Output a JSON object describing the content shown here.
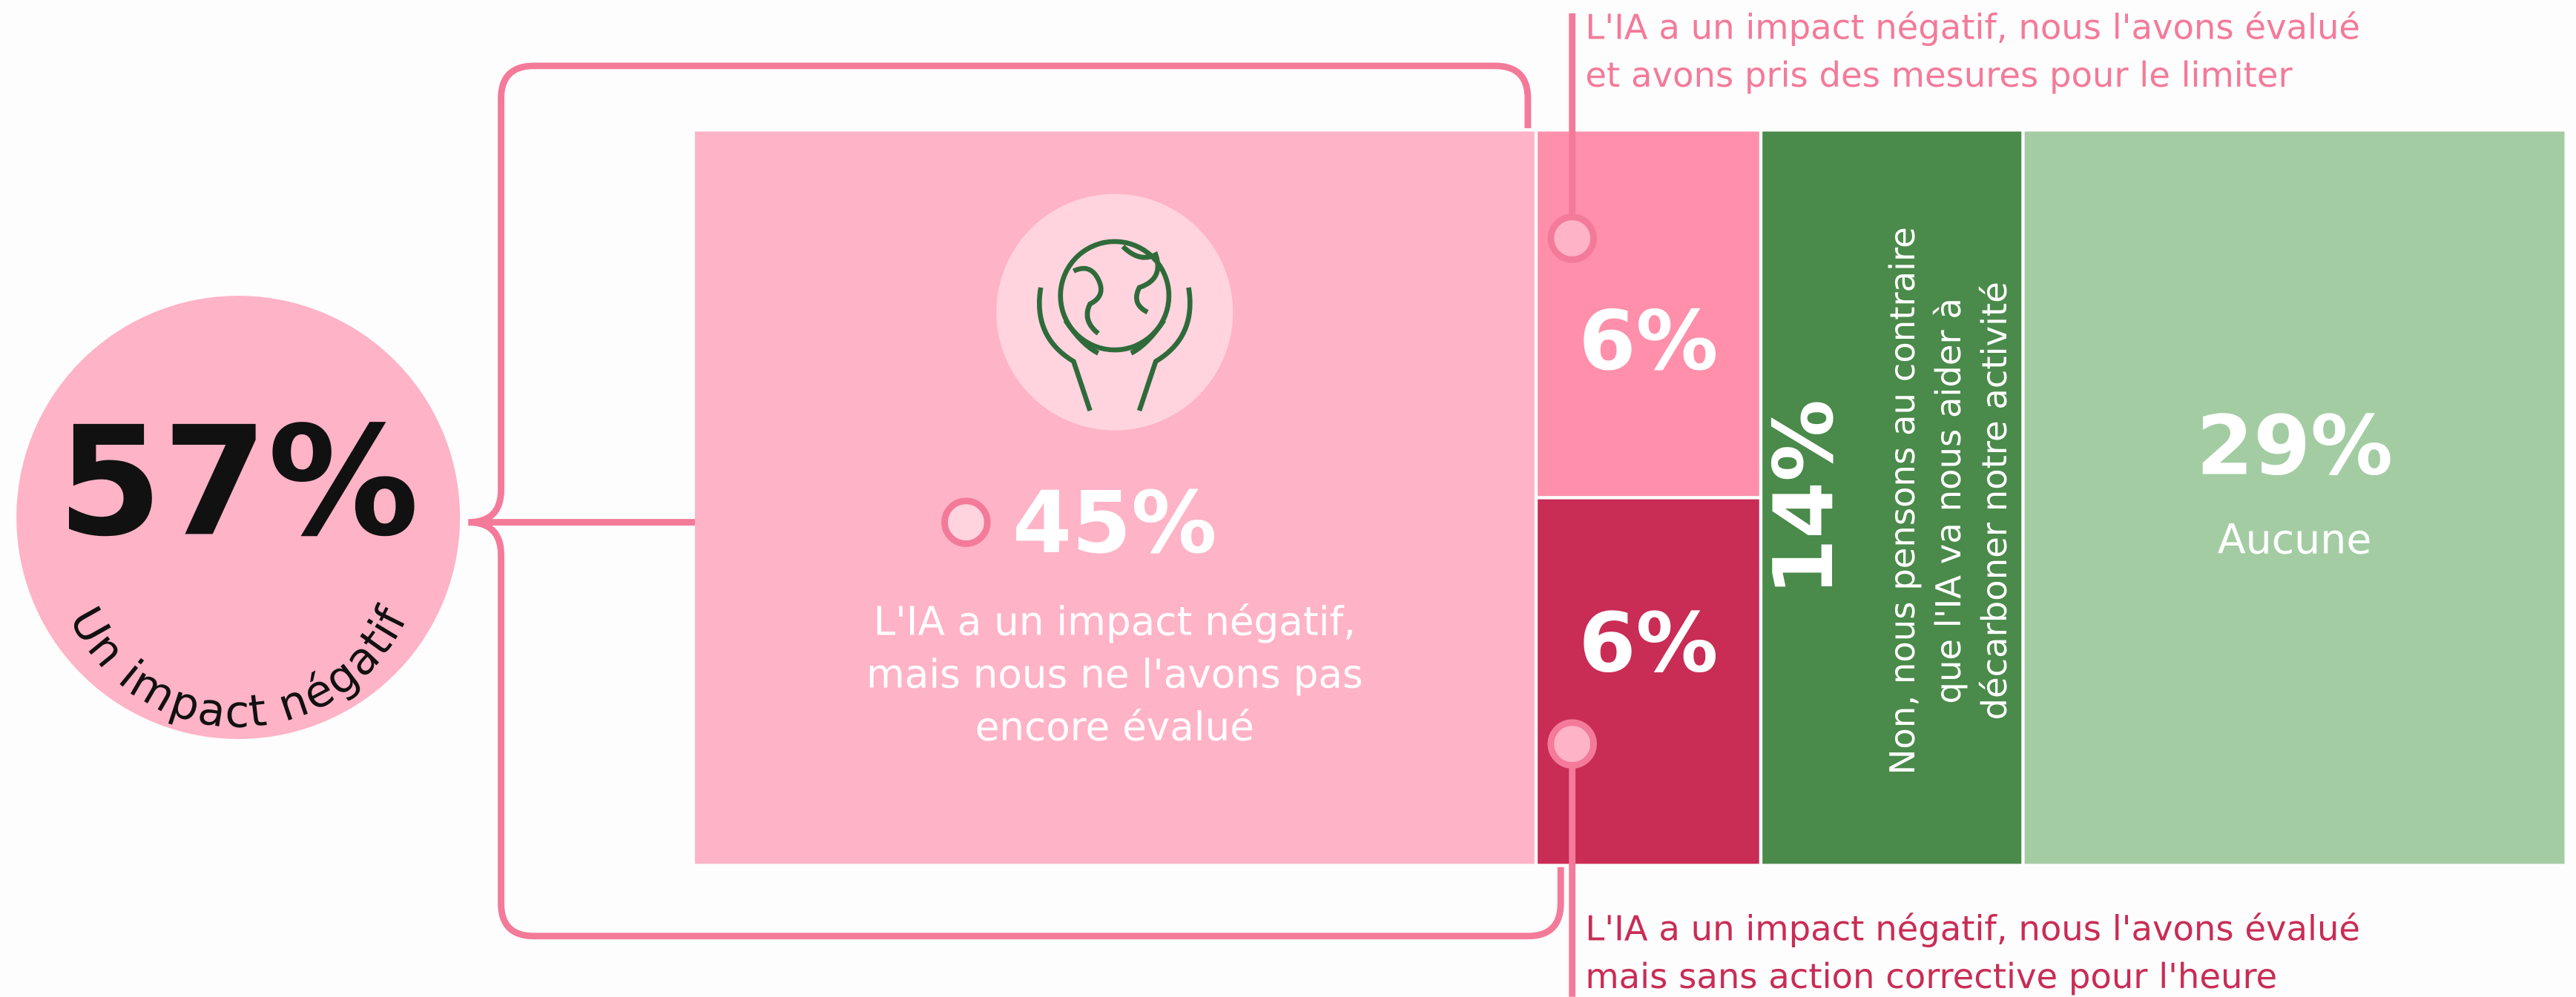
{
  "chart_data": {
    "type": "treemap",
    "total": 57,
    "total_label": "57%",
    "total_text": "Un impact négatif",
    "categories": [
      [
        "L'IA a un impact négatif,",
        "mais nous ne l'avons pas",
        "encore évalué"
      ],
      [
        "L'IA a un impact négatif, nous l'avons évalué",
        "et avons pris des mesures pour le limiter"
      ],
      [
        "L'IA a un impact négatif, nous l'avons évalué",
        "mais sans action corrective pour l'heure"
      ],
      [
        "Non, nous pensons au contraire",
        "que l'IA va nous aider à",
        "décarboner notre activité"
      ],
      [
        "Aucune"
      ]
    ],
    "values": [
      45,
      6,
      6,
      14,
      29
    ],
    "value_labels": [
      "45%",
      "6%",
      "6%",
      "14%",
      "29%"
    ],
    "colors": [
      "#ffb3c6",
      "#ff8fab",
      "#c92c55",
      "#4a8a4a",
      "#a3cca3"
    ]
  }
}
